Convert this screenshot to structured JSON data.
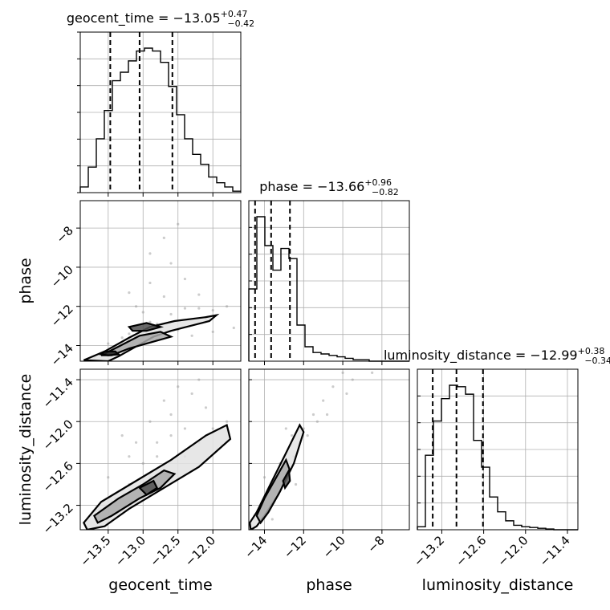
{
  "chart_data": {
    "type": "corner",
    "parameters": [
      "geocent_time",
      "phase",
      "luminosity_distance"
    ],
    "titles": [
      {
        "name": "geocent_time",
        "median": "−13.05",
        "plus": "+0.47",
        "minus": "−0.42"
      },
      {
        "name": "phase",
        "median": "−13.66",
        "plus": "+0.96",
        "minus": "−0.82"
      },
      {
        "name": "luminosity_distance",
        "median": "−12.99",
        "plus": "+0.38",
        "minus": "−0.34"
      }
    ],
    "ranges": [
      [
        -13.9,
        -11.6
      ],
      [
        -14.8,
        -6.6
      ],
      [
        -13.55,
        -11.25
      ]
    ],
    "ticks": [
      {
        "values": [
          -13.5,
          -13.0,
          -12.5,
          -12.0
        ],
        "labels": [
          "−13.5",
          "−13.0",
          "−12.5",
          "−12.0"
        ]
      },
      {
        "values": [
          -14,
          -12,
          -10,
          -8
        ],
        "labels": [
          "−14",
          "−12",
          "−10",
          "−8"
        ]
      },
      {
        "values": [
          -13.2,
          -12.6,
          -12.0,
          -11.4
        ],
        "labels": [
          "−13.2",
          "−12.6",
          "−12.0",
          "−11.4"
        ]
      }
    ],
    "histograms": [
      {
        "param": "geocent_time",
        "edges_start": -13.9,
        "bin_width": 0.115,
        "counts": [
          0.04,
          0.18,
          0.38,
          0.58,
          0.79,
          0.85,
          0.93,
          1.0,
          1.02,
          1.0,
          0.92,
          0.75,
          0.55,
          0.38,
          0.27,
          0.2,
          0.11,
          0.07,
          0.04,
          0.01
        ],
        "quantiles": [
          -13.47,
          -13.05,
          -12.58
        ]
      },
      {
        "param": "phase",
        "edges_start": -14.8,
        "bin_width": 0.41,
        "counts": [
          0.5,
          1.0,
          0.8,
          0.63,
          0.78,
          0.71,
          0.25,
          0.1,
          0.06,
          0.05,
          0.04,
          0.03,
          0.02,
          0.01,
          0.01,
          0.0,
          0.0,
          0.0,
          0.0,
          0.0
        ],
        "quantiles": [
          -14.48,
          -13.66,
          -12.7
        ]
      },
      {
        "param": "luminosity_distance",
        "edges_start": -13.55,
        "bin_width": 0.115,
        "counts": [
          0.02,
          0.5,
          0.73,
          0.88,
          0.97,
          0.96,
          0.91,
          0.6,
          0.42,
          0.22,
          0.12,
          0.06,
          0.03,
          0.02,
          0.015,
          0.01,
          0.005,
          0.0,
          0.0,
          0.0
        ],
        "quantiles": [
          -13.33,
          -12.99,
          -12.61
        ]
      }
    ],
    "pairs": [
      {
        "x": "geocent_time",
        "y": "phase",
        "points": [
          [
            -13.0,
            -12.3
          ],
          [
            -13.2,
            -13.4
          ],
          [
            -12.8,
            -12.9
          ],
          [
            -13.4,
            -14.1
          ],
          [
            -12.6,
            -12.4
          ],
          [
            -13.6,
            -14.4
          ],
          [
            -12.9,
            -12.8
          ],
          [
            -12.4,
            -12.1
          ],
          [
            -12.2,
            -12.1
          ],
          [
            -12.0,
            -12.2
          ],
          [
            -11.8,
            -12.0
          ],
          [
            -12.7,
            -11.5
          ],
          [
            -12.9,
            -10.8
          ],
          [
            -12.6,
            -9.8
          ],
          [
            -12.7,
            -8.5
          ],
          [
            -12.5,
            -7.8
          ],
          [
            -13.1,
            -12.0
          ],
          [
            -13.3,
            -13.6
          ],
          [
            -13.5,
            -13.9
          ],
          [
            -12.8,
            -13.7
          ],
          [
            -12.5,
            -13.2
          ],
          [
            -12.3,
            -13.5
          ],
          [
            -12.0,
            -13.3
          ],
          [
            -11.7,
            -13.1
          ],
          [
            -13.7,
            -14.6
          ],
          [
            -12.4,
            -10.6
          ],
          [
            -12.2,
            -11.4
          ],
          [
            -12.9,
            -9.3
          ],
          [
            -13.2,
            -11.3
          ],
          [
            -12.1,
            -12.7
          ]
        ],
        "contours": [
          [
            [
              -13.85,
              -14.75
            ],
            [
              -13.55,
              -14.3
            ],
            [
              -13.2,
              -13.6
            ],
            [
              -12.9,
              -13.05
            ],
            [
              -12.55,
              -12.75
            ],
            [
              -12.1,
              -12.55
            ],
            [
              -11.95,
              -12.45
            ],
            [
              -12.05,
              -12.75
            ],
            [
              -12.6,
              -13.25
            ],
            [
              -12.85,
              -13.55
            ],
            [
              -13.1,
              -14.05
            ],
            [
              -13.35,
              -14.55
            ],
            [
              -13.5,
              -14.8
            ]
          ],
          [
            [
              -13.6,
              -14.5
            ],
            [
              -13.35,
              -14.05
            ],
            [
              -13.05,
              -13.5
            ],
            [
              -12.75,
              -13.3
            ],
            [
              -12.6,
              -13.55
            ],
            [
              -12.9,
              -13.85
            ],
            [
              -13.2,
              -14.15
            ],
            [
              -13.45,
              -14.5
            ]
          ],
          [
            [
              -13.2,
              -13.05
            ],
            [
              -12.95,
              -12.85
            ],
            [
              -12.75,
              -13.05
            ],
            [
              -12.95,
              -13.25
            ],
            [
              -13.15,
              -13.25
            ]
          ],
          [
            [
              -13.55,
              -14.3
            ],
            [
              -13.4,
              -14.3
            ],
            [
              -13.35,
              -14.45
            ],
            [
              -13.5,
              -14.5
            ],
            [
              -13.6,
              -14.45
            ]
          ]
        ]
      },
      {
        "x": "geocent_time",
        "y": "luminosity_distance",
        "points": [
          [
            -13.0,
            -12.6
          ],
          [
            -12.8,
            -12.5
          ],
          [
            -13.2,
            -12.9
          ],
          [
            -12.6,
            -12.2
          ],
          [
            -12.4,
            -12.1
          ],
          [
            -12.9,
            -12.0
          ],
          [
            -12.7,
            -11.7
          ],
          [
            -12.5,
            -11.5
          ],
          [
            -12.3,
            -11.6
          ],
          [
            -13.1,
            -12.3
          ],
          [
            -13.4,
            -13.1
          ],
          [
            -13.6,
            -13.3
          ],
          [
            -12.2,
            -12.3
          ],
          [
            -12.0,
            -12.1
          ],
          [
            -11.8,
            -12.0
          ],
          [
            -12.6,
            -11.9
          ],
          [
            -13.3,
            -12.2
          ],
          [
            -12.9,
            -12.8
          ],
          [
            -13.5,
            -12.8
          ],
          [
            -12.4,
            -12.5
          ],
          [
            -12.1,
            -11.8
          ],
          [
            -12.8,
            -12.3
          ],
          [
            -13.0,
            -12.9
          ],
          [
            -12.2,
            -11.4
          ],
          [
            -13.2,
            -12.5
          ]
        ],
        "contours": [
          [
            [
              -13.85,
              -13.45
            ],
            [
              -13.6,
              -13.15
            ],
            [
              -13.1,
              -12.85
            ],
            [
              -12.6,
              -12.55
            ],
            [
              -12.1,
              -12.2
            ],
            [
              -11.8,
              -12.05
            ],
            [
              -11.75,
              -12.25
            ],
            [
              -12.2,
              -12.65
            ],
            [
              -12.7,
              -12.95
            ],
            [
              -13.2,
              -13.25
            ],
            [
              -13.55,
              -13.5
            ],
            [
              -13.8,
              -13.55
            ]
          ],
          [
            [
              -13.7,
              -13.35
            ],
            [
              -13.35,
              -13.1
            ],
            [
              -13.0,
              -12.9
            ],
            [
              -12.7,
              -12.7
            ],
            [
              -12.55,
              -12.75
            ],
            [
              -12.75,
              -12.95
            ],
            [
              -13.05,
              -13.1
            ],
            [
              -13.45,
              -13.35
            ],
            [
              -13.65,
              -13.45
            ]
          ],
          [
            [
              -13.05,
              -12.95
            ],
            [
              -12.85,
              -12.85
            ],
            [
              -12.8,
              -12.95
            ],
            [
              -12.95,
              -13.05
            ]
          ]
        ]
      },
      {
        "x": "phase",
        "y": "luminosity_distance",
        "points": [
          [
            -13.5,
            -13.0
          ],
          [
            -13.0,
            -12.8
          ],
          [
            -12.5,
            -12.5
          ],
          [
            -12.0,
            -12.1
          ],
          [
            -11.5,
            -11.9
          ],
          [
            -11.0,
            -11.7
          ],
          [
            -10.5,
            -11.5
          ],
          [
            -10.0,
            -11.3
          ],
          [
            -9.5,
            -11.4
          ],
          [
            -14.2,
            -13.3
          ],
          [
            -13.8,
            -13.1
          ],
          [
            -12.8,
            -12.7
          ],
          [
            -12.2,
            -12.3
          ],
          [
            -11.8,
            -12.2
          ],
          [
            -14.5,
            -13.4
          ],
          [
            -13.2,
            -12.6
          ],
          [
            -12.6,
            -12.2
          ],
          [
            -11.3,
            -12.0
          ],
          [
            -10.8,
            -11.9
          ],
          [
            -9.8,
            -11.6
          ],
          [
            -8.5,
            -11.3
          ],
          [
            -14.0,
            -12.8
          ],
          [
            -13.6,
            -13.4
          ],
          [
            -12.9,
            -12.1
          ],
          [
            -12.4,
            -12.9
          ]
        ],
        "contours": [
          [
            [
              -14.75,
              -13.45
            ],
            [
              -14.4,
              -13.3
            ],
            [
              -13.7,
              -12.9
            ],
            [
              -12.9,
              -12.45
            ],
            [
              -12.2,
              -12.05
            ],
            [
              -12.0,
              -12.15
            ],
            [
              -12.5,
              -12.6
            ],
            [
              -13.3,
              -13.05
            ],
            [
              -14.0,
              -13.35
            ],
            [
              -14.4,
              -13.5
            ],
            [
              -14.7,
              -13.55
            ]
          ],
          [
            [
              -14.4,
              -13.35
            ],
            [
              -14.0,
              -13.1
            ],
            [
              -13.4,
              -12.8
            ],
            [
              -12.9,
              -12.55
            ],
            [
              -12.7,
              -12.7
            ],
            [
              -13.2,
              -13.0
            ],
            [
              -13.8,
              -13.3
            ],
            [
              -14.2,
              -13.45
            ]
          ],
          [
            [
              -13.05,
              -12.85
            ],
            [
              -12.75,
              -12.7
            ],
            [
              -12.7,
              -12.85
            ],
            [
              -12.95,
              -12.95
            ]
          ]
        ]
      }
    ]
  }
}
